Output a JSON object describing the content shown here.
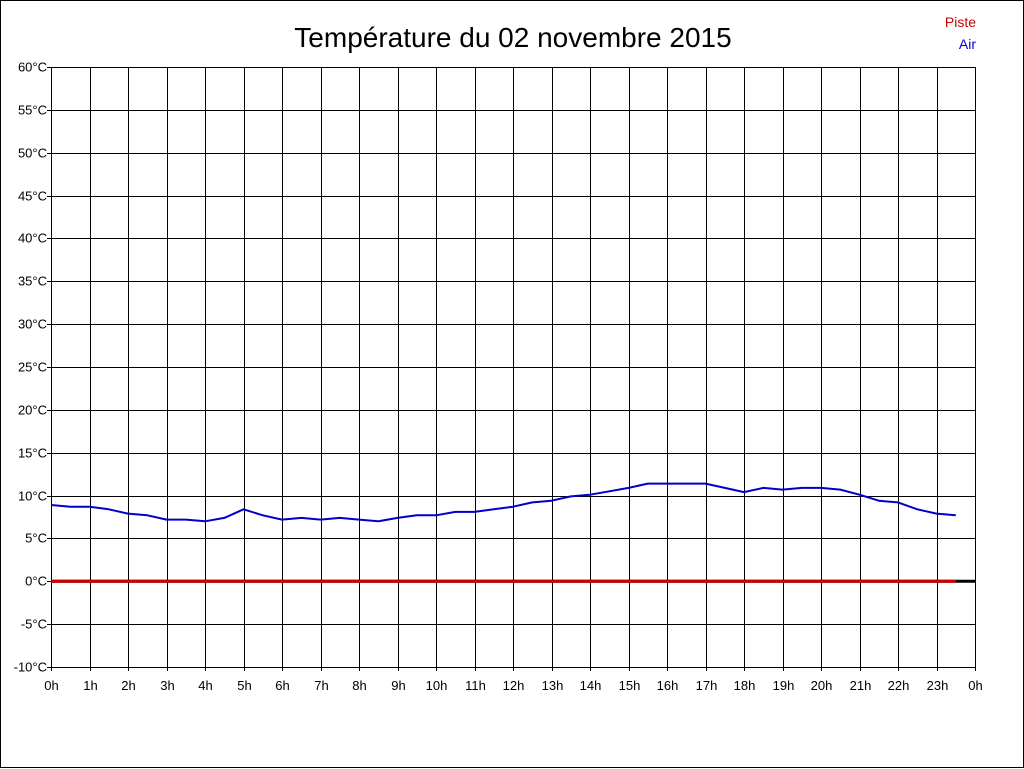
{
  "chart_data": {
    "type": "line",
    "title": "Température du 02 novembre 2015",
    "xlabel": "",
    "ylabel": "",
    "ylim": [
      -10,
      60
    ],
    "xlim": [
      0,
      24
    ],
    "grid": true,
    "legend_position": "top-right",
    "y_ticks": [
      {
        "value": 60,
        "label": "60°C"
      },
      {
        "value": 55,
        "label": "55°C"
      },
      {
        "value": 50,
        "label": "50°C"
      },
      {
        "value": 45,
        "label": "45°C"
      },
      {
        "value": 40,
        "label": "40°C"
      },
      {
        "value": 35,
        "label": "35°C"
      },
      {
        "value": 30,
        "label": "30°C"
      },
      {
        "value": 25,
        "label": "25°C"
      },
      {
        "value": 20,
        "label": "20°C"
      },
      {
        "value": 15,
        "label": "15°C"
      },
      {
        "value": 10,
        "label": "10°C"
      },
      {
        "value": 5,
        "label": "5°C"
      },
      {
        "value": 0,
        "label": "0°C"
      },
      {
        "value": -5,
        "label": "-5°C"
      },
      {
        "value": -10,
        "label": "-10°C"
      }
    ],
    "x_ticks": [
      {
        "value": 0,
        "label": "0h"
      },
      {
        "value": 1,
        "label": "1h"
      },
      {
        "value": 2,
        "label": "2h"
      },
      {
        "value": 3,
        "label": "3h"
      },
      {
        "value": 4,
        "label": "4h"
      },
      {
        "value": 5,
        "label": "5h"
      },
      {
        "value": 6,
        "label": "6h"
      },
      {
        "value": 7,
        "label": "7h"
      },
      {
        "value": 8,
        "label": "8h"
      },
      {
        "value": 9,
        "label": "9h"
      },
      {
        "value": 10,
        "label": "10h"
      },
      {
        "value": 11,
        "label": "11h"
      },
      {
        "value": 12,
        "label": "12h"
      },
      {
        "value": 13,
        "label": "13h"
      },
      {
        "value": 14,
        "label": "14h"
      },
      {
        "value": 15,
        "label": "15h"
      },
      {
        "value": 16,
        "label": "16h"
      },
      {
        "value": 17,
        "label": "17h"
      },
      {
        "value": 18,
        "label": "18h"
      },
      {
        "value": 19,
        "label": "19h"
      },
      {
        "value": 20,
        "label": "20h"
      },
      {
        "value": 21,
        "label": "21h"
      },
      {
        "value": 22,
        "label": "22h"
      },
      {
        "value": 23,
        "label": "23h"
      },
      {
        "value": 24,
        "label": "0h"
      }
    ],
    "series": [
      {
        "name": "Piste",
        "color": "#cc0000",
        "x": [
          0,
          23.5
        ],
        "y": [
          0,
          0
        ]
      },
      {
        "name": "Air",
        "color": "#0000cc",
        "x": [
          0,
          0.5,
          1,
          1.5,
          2,
          2.5,
          3,
          3.5,
          4,
          4.5,
          5,
          5.5,
          6,
          6.5,
          7,
          7.5,
          8,
          8.5,
          9,
          9.5,
          10,
          10.5,
          11,
          11.5,
          12,
          12.5,
          13,
          13.5,
          14,
          14.5,
          15,
          15.5,
          16,
          16.5,
          17,
          17.5,
          18,
          18.5,
          19,
          19.5,
          20,
          20.5,
          21,
          21.5,
          22,
          22.5,
          23,
          23.5
        ],
        "y": [
          8.9,
          8.7,
          8.7,
          8.4,
          7.9,
          7.7,
          7.2,
          7.2,
          7.0,
          7.4,
          8.4,
          7.7,
          7.2,
          7.4,
          7.2,
          7.4,
          7.2,
          7.0,
          7.4,
          7.7,
          7.7,
          8.1,
          8.1,
          8.4,
          8.7,
          9.2,
          9.4,
          9.9,
          10.1,
          10.5,
          10.9,
          11.4,
          11.4,
          11.4,
          11.4,
          10.9,
          10.4,
          10.9,
          10.7,
          10.9,
          10.9,
          10.7,
          10.1,
          9.4,
          9.2,
          8.4,
          7.9,
          7.7
        ]
      }
    ],
    "zero_line_color": "#000000"
  }
}
